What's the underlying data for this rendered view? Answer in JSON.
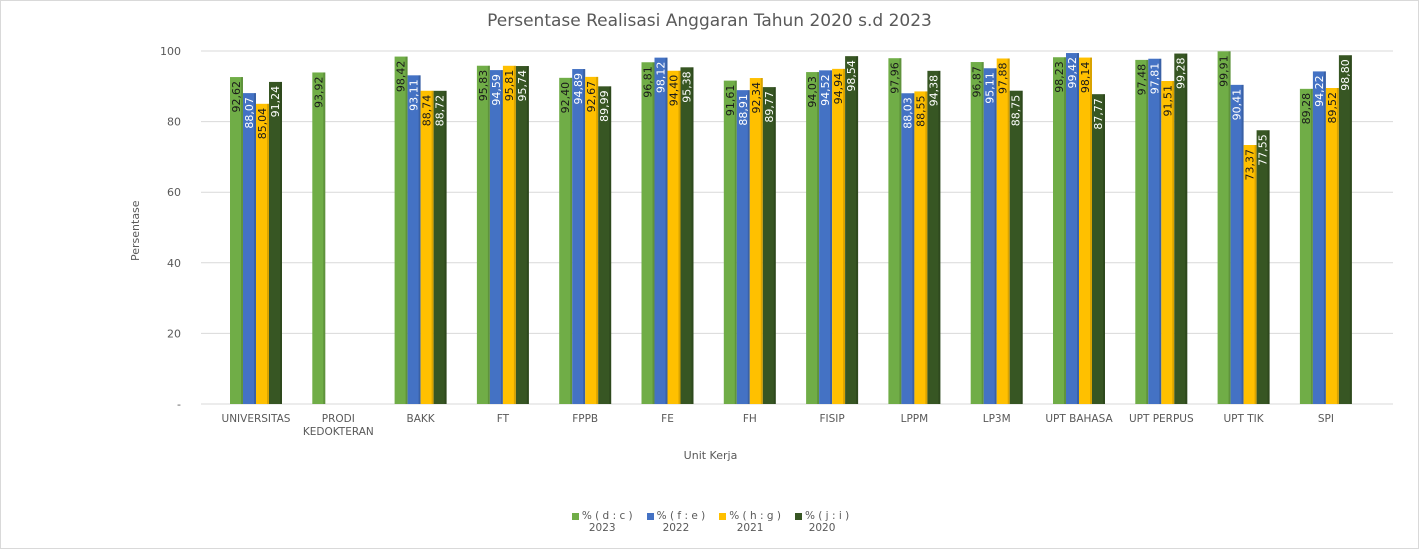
{
  "chart_data": {
    "type": "bar",
    "title": "Persentase Realisasi Anggaran Tahun 2020 s.d 2023",
    "xlabel": "Unit Kerja",
    "ylabel": "Persentase",
    "ylim": [
      0,
      100
    ],
    "yticks": [
      "-",
      "20",
      "40",
      "60",
      "80",
      "100"
    ],
    "grid": true,
    "legend_position": "bottom",
    "categories": [
      "UNIVERSITAS",
      "PRODI KEDOKTERAN",
      "BAKK",
      "FT",
      "FPPB",
      "FE",
      "FH",
      "FISIP",
      "LPPM",
      "LP3M",
      "UPT BAHASA",
      "UPT PERPUS",
      "UPT TIK",
      "SPI"
    ],
    "series": [
      {
        "name": "% ( d : c )",
        "year": "2023",
        "color": "#70ad47",
        "values": [
          92.62,
          93.92,
          98.42,
          95.83,
          92.4,
          96.81,
          91.61,
          94.03,
          97.96,
          96.87,
          98.23,
          97.48,
          99.91,
          89.28
        ]
      },
      {
        "name": "% ( f : e )",
        "year": "2022",
        "color": "#4472c4",
        "values": [
          88.07,
          null,
          93.11,
          94.59,
          94.89,
          98.12,
          88.91,
          94.52,
          88.03,
          95.11,
          99.42,
          97.81,
          90.41,
          94.22
        ]
      },
      {
        "name": "% ( h : g )",
        "year": "2021",
        "color": "#ffc000",
        "values": [
          85.04,
          null,
          88.74,
          95.81,
          92.67,
          94.4,
          92.34,
          94.94,
          88.55,
          97.88,
          98.14,
          91.51,
          73.37,
          89.52
        ]
      },
      {
        "name": "% ( j : i )",
        "year": "2020",
        "color": "#375623",
        "values": [
          91.24,
          null,
          88.72,
          95.74,
          89.99,
          95.38,
          89.77,
          98.54,
          94.38,
          88.75,
          87.77,
          99.28,
          77.55,
          98.8
        ]
      }
    ]
  }
}
